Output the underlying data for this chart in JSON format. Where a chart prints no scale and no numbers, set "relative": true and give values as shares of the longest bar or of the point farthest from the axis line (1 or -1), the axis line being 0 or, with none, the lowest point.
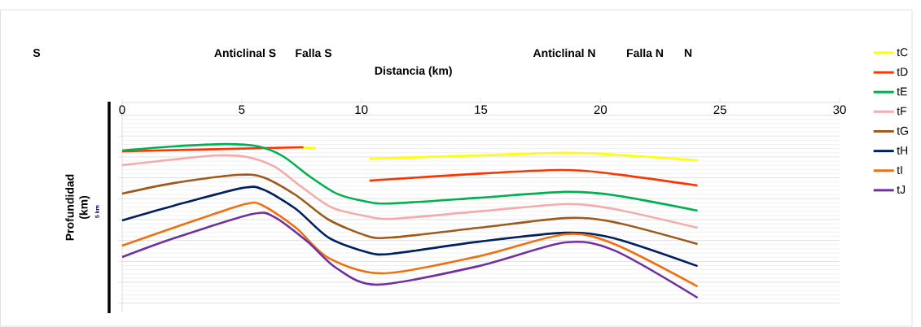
{
  "chart_data": {
    "type": "line",
    "xlabel": "Distancia (km)",
    "ylabel": "Profundidad (km)",
    "relative": true,
    "xlim": [
      0,
      30
    ],
    "xticks": [
      0,
      5,
      10,
      15,
      20,
      25,
      30
    ],
    "grid": "y",
    "legend": "right",
    "line_style": "solid",
    "marker": "none",
    "annotations": [
      "S",
      "Anticlinal S",
      "Falla S",
      "Anticlinal N",
      "Falla N",
      "N",
      "5 km"
    ],
    "series": [
      {
        "name": "tC",
        "color": "#ffff00",
        "x": [
          7.5,
          8.1,
          null,
          10.34,
          14.91,
          18.53,
          20.58,
          24.06
        ],
        "values": [
          -0.233,
          -0.233,
          null,
          -0.288,
          -0.271,
          -0.258,
          -0.267,
          -0.296
        ]
      },
      {
        "name": "tD",
        "color": "#ff3300",
        "x": [
          0,
          7.58,
          null,
          10.34,
          15.12,
          18.33,
          20.03,
          24.06
        ],
        "values": [
          -0.25,
          -0.229,
          null,
          -0.4,
          -0.363,
          -0.346,
          -0.358,
          -0.425
        ]
      },
      {
        "name": "tE",
        "color": "#00b050",
        "x": [
          0,
          2.15,
          4.33,
          5.7,
          6.72,
          7.85,
          8.98,
          10.24,
          11.26,
          14.91,
          18.53,
          20.58,
          24.06
        ],
        "values": [
          -0.246,
          -0.225,
          -0.213,
          -0.225,
          -0.275,
          -0.379,
          -0.467,
          -0.508,
          -0.517,
          -0.488,
          -0.458,
          -0.475,
          -0.554
        ]
      },
      {
        "name": "tF",
        "color": "#f4abab",
        "x": [
          0,
          2.15,
          4.0,
          5.22,
          6.38,
          7.51,
          8.77,
          10.24,
          11.26,
          14.91,
          18.53,
          20.58,
          24.06
        ],
        "values": [
          -0.321,
          -0.292,
          -0.271,
          -0.279,
          -0.329,
          -0.433,
          -0.538,
          -0.583,
          -0.596,
          -0.558,
          -0.521,
          -0.546,
          -0.642
        ]
      },
      {
        "name": "tG",
        "color": "#9e5a1c",
        "x": [
          0,
          2.15,
          4.78,
          5.9,
          7.27,
          8.63,
          10.24,
          11.26,
          14.91,
          18.53,
          20.58,
          24.06
        ],
        "values": [
          -0.467,
          -0.413,
          -0.371,
          -0.383,
          -0.475,
          -0.6,
          -0.683,
          -0.692,
          -0.642,
          -0.592,
          -0.613,
          -0.725
        ]
      },
      {
        "name": "tH",
        "color": "#002060",
        "x": [
          0,
          2.15,
          5.02,
          5.9,
          7.27,
          8.63,
          10.24,
          11.26,
          14.91,
          18.53,
          20.58,
          24.06
        ],
        "values": [
          -0.604,
          -0.529,
          -0.438,
          -0.446,
          -0.546,
          -0.692,
          -0.767,
          -0.775,
          -0.713,
          -0.667,
          -0.696,
          -0.838
        ]
      },
      {
        "name": "tI",
        "color": "#f07010",
        "x": [
          0,
          2.15,
          5.12,
          5.9,
          7.27,
          8.63,
          10.92,
          14.91,
          18.53,
          20.58,
          24.06
        ],
        "values": [
          -0.733,
          -0.642,
          -0.521,
          -0.529,
          -0.642,
          -0.796,
          -0.875,
          -0.788,
          -0.675,
          -0.725,
          -0.942
        ]
      },
      {
        "name": "tJ",
        "color": "#7030a0",
        "x": [
          0,
          2.15,
          5.46,
          6.38,
          7.75,
          8.98,
          10.68,
          14.91,
          18.53,
          20.58,
          24.06
        ],
        "values": [
          -0.792,
          -0.696,
          -0.571,
          -0.588,
          -0.713,
          -0.85,
          -0.933,
          -0.838,
          -0.717,
          -0.758,
          -1
        ]
      }
    ]
  }
}
